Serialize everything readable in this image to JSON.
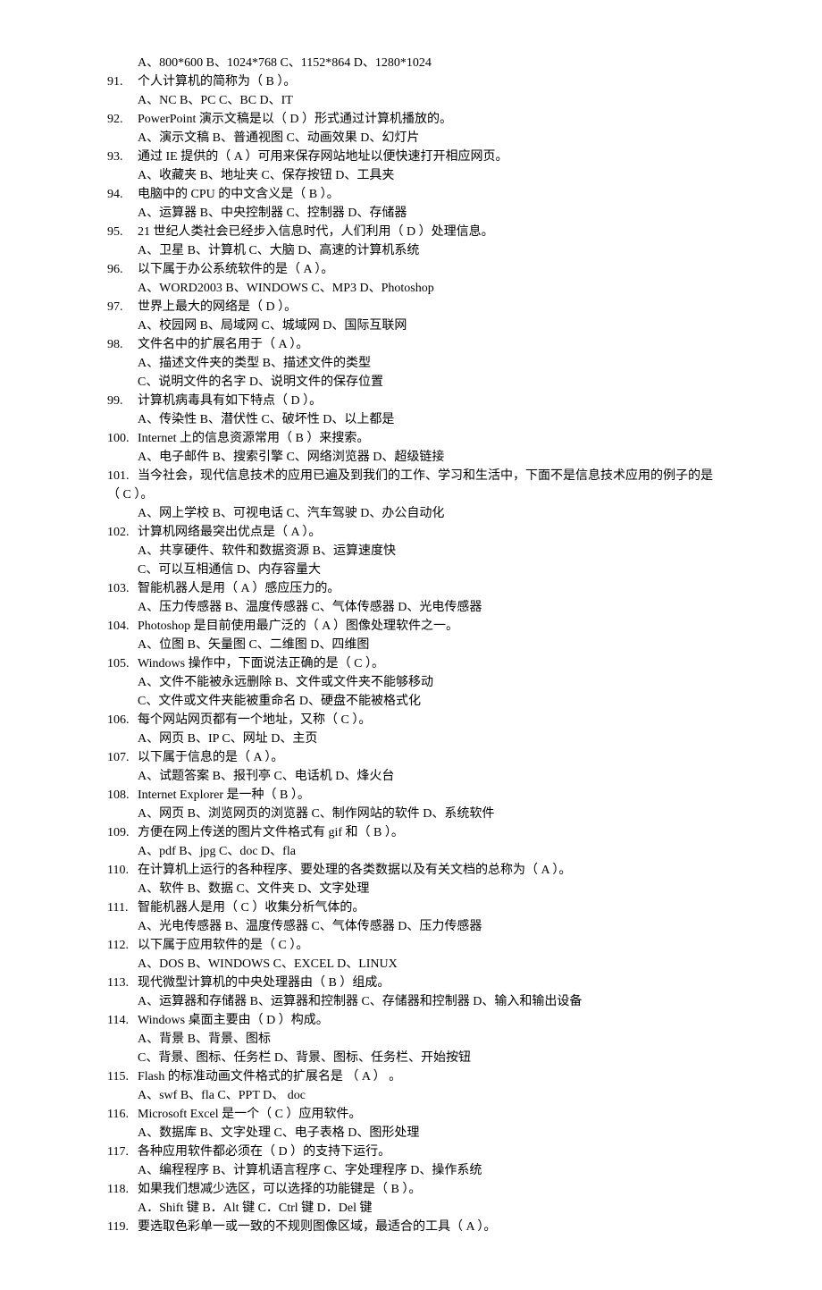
{
  "lines": [
    {
      "type": "options",
      "text": "A、800*600    B、1024*768    C、1152*864    D、1280*1024"
    },
    {
      "type": "q",
      "num": "91.",
      "text": "个人计算机的简称为（  B  ）。"
    },
    {
      "type": "options",
      "text": "A、NC            B、PC            C、BC                D、IT"
    },
    {
      "type": "q",
      "num": "92.",
      "text": "PowerPoint 演示文稿是以（  D  ）形式通过计算机播放的。"
    },
    {
      "type": "options",
      "text": "A、演示文稿      B、普通视图    C、动画效果      D、幻灯片"
    },
    {
      "type": "q",
      "num": "93.",
      "text": "通过 IE 提供的（  A  ）可用来保存网站地址以便快速打开相应网页。"
    },
    {
      "type": "options",
      "text": "A、收藏夹        B、地址夹        C、保存按钮    D、工具夹"
    },
    {
      "type": "q",
      "num": "94.",
      "text": "电脑中的 CPU 的中文含义是（  B  ）。"
    },
    {
      "type": "options",
      "text": "A、运算器      B、中央控制器        C、控制器    D、存储器"
    },
    {
      "type": "q",
      "num": "95.",
      "text": "21 世纪人类社会已经步入信息时代，人们利用（  D  ）处理信息。"
    },
    {
      "type": "options",
      "text": "A、卫星        B、计算机        C、大脑            D、高速的计算机系统"
    },
    {
      "type": "q",
      "num": "96.",
      "text": "以下属于办公系统软件的是（  A  ）。"
    },
    {
      "type": "options",
      "text": "A、WORD2003          B、WINDOWS        C、MP3        D、Photoshop"
    },
    {
      "type": "q",
      "num": "97.",
      "text": "世界上最大的网络是（  D  ）。"
    },
    {
      "type": "options",
      "text": "A、校园网      B、局域网      C、城域网        D、国际互联网"
    },
    {
      "type": "q",
      "num": "98.",
      "text": "文件名中的扩展名用于（  A  ）。"
    },
    {
      "type": "options",
      "text": "A、描述文件夹的类型        B、描述文件的类型"
    },
    {
      "type": "options",
      "text": "C、说明文件的名字          D、说明文件的保存位置"
    },
    {
      "type": "q",
      "num": "99.",
      "text": "计算机病毒具有如下特点（  D  ）。"
    },
    {
      "type": "options",
      "text": "A、传染性      B、潜伏性          C、破坏性          D、以上都是"
    },
    {
      "type": "q",
      "num": "100.",
      "text": "Internet 上的信息资源常用（  B  ）来搜索。"
    },
    {
      "type": "options",
      "text": "A、电子邮件    B、搜索引擎      C、网络浏览器    D、超级链接"
    },
    {
      "type": "q",
      "num": "101.",
      "text": "当今社会，现代信息技术的应用已遍及到我们的工作、学习和生活中，下面不是信息技术应用的例子的是（  C  ）。"
    },
    {
      "type": "options",
      "text": "A、网上学校      B、可视电话    C、汽车驾驶          D、办公自动化"
    },
    {
      "type": "q",
      "num": "102.",
      "text": "计算机网络最突出优点是（  A  ）。"
    },
    {
      "type": "options",
      "text": "A、共享硬件、软件和数据资源    B、运算速度快"
    },
    {
      "type": "options",
      "text": "C、可以互相通信                D、内存容量大"
    },
    {
      "type": "q",
      "num": "103.",
      "text": "智能机器人是用（  A  ）感应压力的。"
    },
    {
      "type": "options",
      "text": "A、压力传感器    B、温度传感器    C、气体传感器    D、光电传感器"
    },
    {
      "type": "q",
      "num": "104.",
      "text": "Photoshop 是目前使用最广泛的（  A  ）图像处理软件之一。"
    },
    {
      "type": "options",
      "text": "A、位图            B、矢量图            C、二维图      D、四维图"
    },
    {
      "type": "q",
      "num": "105.",
      "text": "Windows 操作中，下面说法正确的是（  C  ）。"
    },
    {
      "type": "options",
      "text": "A、文件不能被永远删除        B、文件或文件夹不能够移动"
    },
    {
      "type": "options",
      "text": "C、文件或文件夹能被重命名    D、硬盘不能被格式化"
    },
    {
      "type": "q",
      "num": "106.",
      "text": "每个网站网页都有一个地址，又称（  C  ）。"
    },
    {
      "type": "options",
      "text": "A、网页    B、IP    C、网址    D、主页"
    },
    {
      "type": "q",
      "num": "107.",
      "text": "以下属于信息的是（  A  ）。"
    },
    {
      "type": "options",
      "text": "A、试题答案      B、报刊亭        C、电话机    D、烽火台"
    },
    {
      "type": "q",
      "num": "108.",
      "text": "Internet Explorer 是一种（  B  ）。"
    },
    {
      "type": "options",
      "text": "A、网页    B、浏览网页的浏览器    C、制作网站的软件    D、系统软件"
    },
    {
      "type": "q",
      "num": "109.",
      "text": "方便在网上传送的图片文件格式有 gif 和（  B  ）。"
    },
    {
      "type": "options",
      "text": "A、pdf      B、jpg    C、doc    D、fla"
    },
    {
      "type": "q",
      "num": "110.",
      "text": "在计算机上运行的各种程序、要处理的各类数据以及有关文档的总称为（  A    ）。"
    },
    {
      "type": "options",
      "text": "A、软件    B、数据    C、文件夹        D、文字处理"
    },
    {
      "type": "q",
      "num": "111.",
      "text": "智能机器人是用（  C  ）收集分析气体的。"
    },
    {
      "type": "options",
      "text": "A、光电传感器    B、温度传感器    C、气体传感器    D、压力传感器"
    },
    {
      "type": "q",
      "num": "112.",
      "text": "以下属于应用软件的是（  C  ）。"
    },
    {
      "type": "options",
      "text": "A、DOS    B、WINDOWS    C、EXCEL  D、LINUX"
    },
    {
      "type": "q",
      "num": "113.",
      "text": "现代微型计算机的中央处理器由（  B  ）组成。"
    },
    {
      "type": "options",
      "text": "A、运算器和存储器    B、运算器和控制器  C、存储器和控制器    D、输入和输出设备"
    },
    {
      "type": "q",
      "num": "114.",
      "text": "Windows 桌面主要由（  D  ）构成。"
    },
    {
      "type": "options",
      "text": "A、背景                    B、背景、图标"
    },
    {
      "type": "options",
      "text": "C、背景、图标、任务栏      D、背景、图标、任务栏、开始按钮"
    },
    {
      "type": "q",
      "num": "115.",
      "text": "Flash 的标准动画文件格式的扩展名是 （  A    ） 。"
    },
    {
      "type": "options",
      "text": "A、swf        B、fla        C、PPT        D、 doc"
    },
    {
      "type": "q",
      "num": "116.",
      "text": "Microsoft Excel 是一个（ C  ）应用软件。"
    },
    {
      "type": "options",
      "text": "A、数据库    B、文字处理    C、电子表格    D、图形处理"
    },
    {
      "type": "q",
      "num": "117.",
      "text": "各种应用软件都必须在（  D  ）的支持下运行。"
    },
    {
      "type": "options",
      "text": "A、编程程序    B、计算机语言程序    C、字处理程序    D、操作系统"
    },
    {
      "type": "q",
      "num": "118.",
      "text": "如果我们想减少选区，可以选择的功能键是（  B  ）。"
    },
    {
      "type": "options",
      "text": "A．Shift 键        B．Alt 键          C．Ctrl 键        D．Del 键"
    },
    {
      "type": "q",
      "num": "119.",
      "text": "要选取色彩单一或一致的不规则图像区域，最适合的工具（  A  ）。"
    }
  ]
}
